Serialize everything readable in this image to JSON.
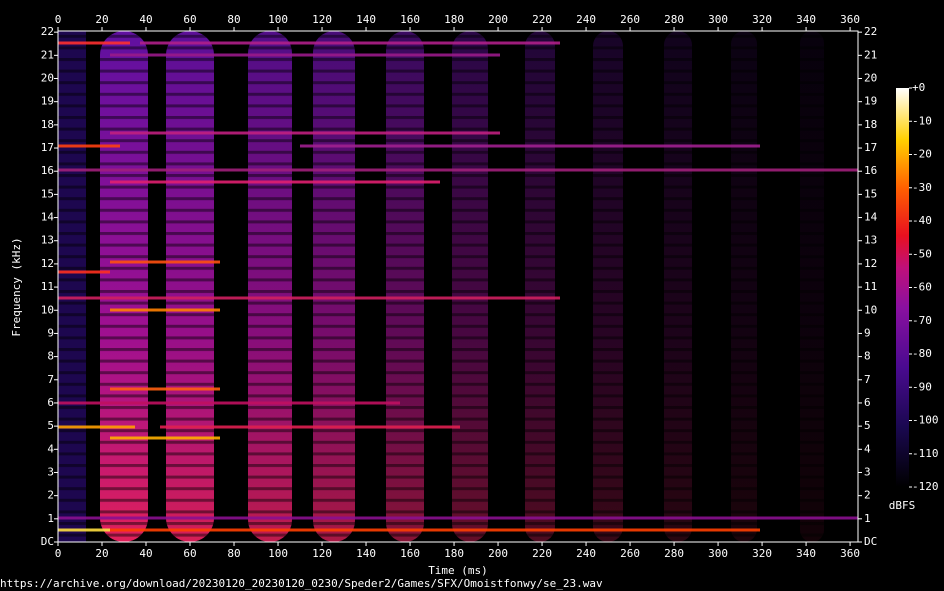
{
  "chart_data": {
    "type": "spectrogram",
    "x_label": "Time (ms)",
    "y_label": "Frequency (kHz)",
    "xlim": [
      0,
      363.6
    ],
    "ylim": [
      0,
      22.05
    ],
    "xticks": [
      0,
      20,
      40,
      60,
      80,
      100,
      120,
      140,
      160,
      180,
      200,
      220,
      240,
      260,
      280,
      300,
      320,
      340,
      360
    ],
    "yticks": [
      {
        "value": 0,
        "label": "DC"
      },
      1,
      2,
      3,
      4,
      5,
      6,
      7,
      8,
      9,
      10,
      11,
      12,
      13,
      14,
      15,
      16,
      17,
      18,
      19,
      20,
      21,
      22
    ],
    "colorbar": {
      "label": "dBFS",
      "lim": [
        -120,
        0
      ],
      "ticks": [
        {
          "value": 0,
          "label": "+0"
        },
        -10,
        -20,
        -30,
        -40,
        -50,
        -60,
        -70,
        -80,
        -90,
        -100,
        -110,
        -120
      ]
    },
    "footer": "https://archive.org/download/20230120_20230120_0230/Speder2/Games/SFX/Omoistfonwy/se_23.wav"
  }
}
